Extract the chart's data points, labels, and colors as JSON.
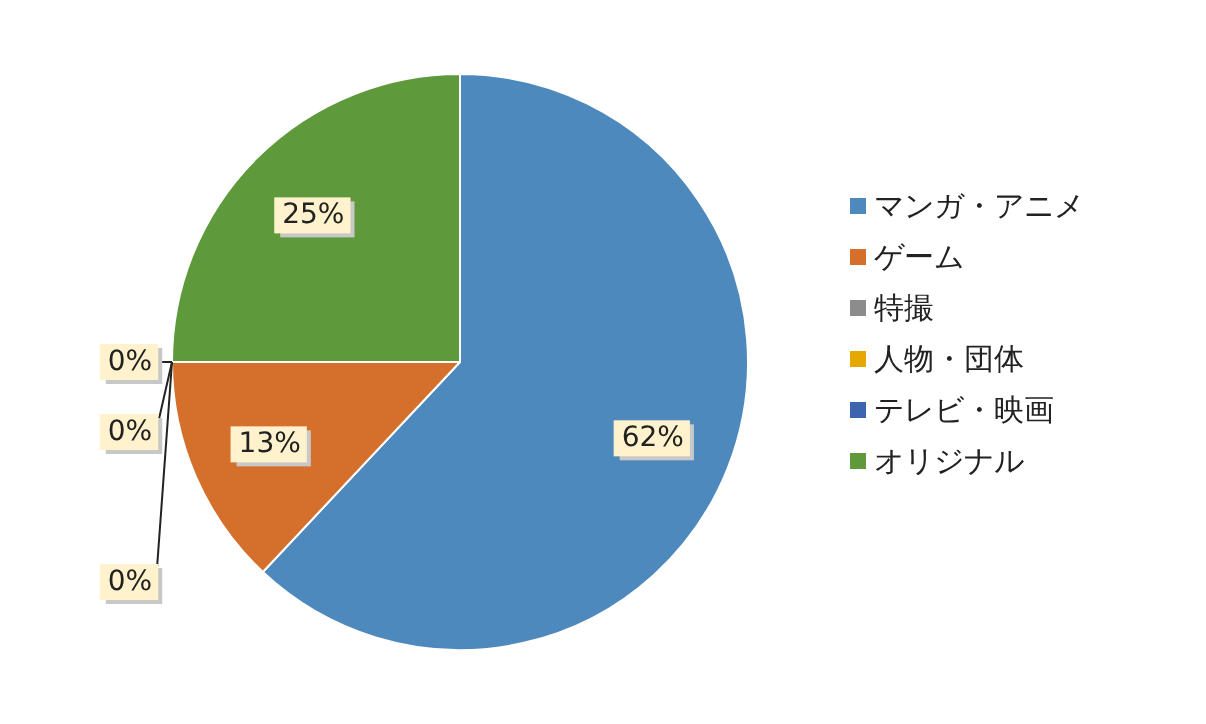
{
  "chart_data": {
    "type": "pie",
    "categories": [
      "マンガ・アニメ",
      "ゲーム",
      "特撮",
      "人物・団体",
      "テレビ・映画",
      "オリジナル"
    ],
    "values": [
      62,
      13,
      0,
      0,
      0,
      25
    ],
    "colors": [
      "#4e89be",
      "#d4702b",
      "#8c8c8c",
      "#e5a800",
      "#3d64ae",
      "#5e9a3c"
    ],
    "value_labels": [
      "62%",
      "13%",
      "0%",
      "0%",
      "0%",
      "25%"
    ],
    "legend": "right"
  }
}
